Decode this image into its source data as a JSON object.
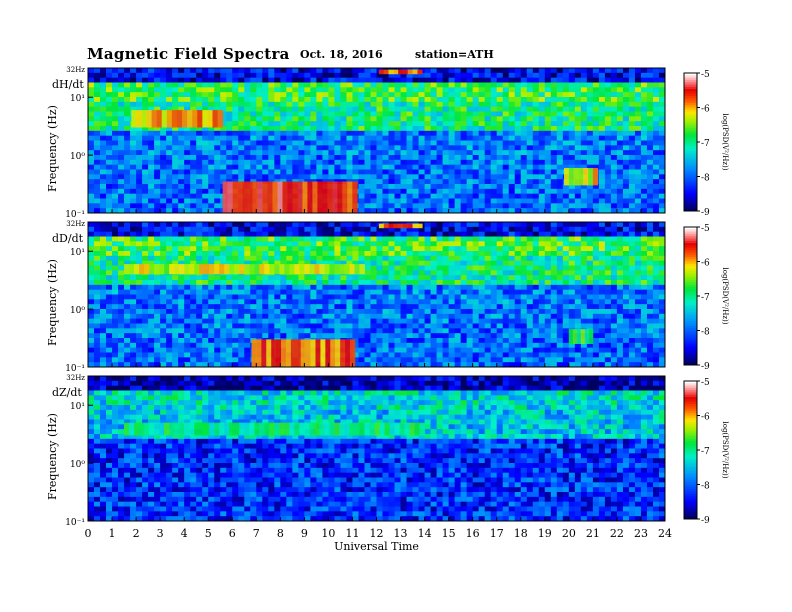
{
  "header": {
    "title": "Magnetic  Field  Spectra",
    "date": "Oct. 18, 2016",
    "station": "station=ATH"
  },
  "chart_data": [
    {
      "type": "heatmap",
      "panel_label": "dH/dt",
      "xlabel": "",
      "ylabel": "Frequency  (Hz)",
      "x_ticks": [
        "0",
        "1",
        "2",
        "3",
        "4",
        "5",
        "6",
        "7",
        "8",
        "9",
        "10",
        "11",
        "12",
        "13",
        "14",
        "15",
        "16",
        "17",
        "18",
        "19",
        "20",
        "21",
        "22",
        "23",
        "24"
      ],
      "xlim": [
        0,
        24
      ],
      "y_scale": "log",
      "ylim": [
        0.1,
        32
      ],
      "y_ticks": [
        "10⁻¹",
        "10⁰",
        "10¹",
        "32Hz"
      ],
      "colorbar": {
        "label": "log(PSD(V²/Hz))",
        "range": [
          -9,
          -5
        ],
        "ticks": [
          "-5",
          "-6",
          "-7",
          "-8",
          "-9"
        ]
      },
      "features": [
        {
          "t_start": 1.8,
          "t_end": 5.6,
          "f_low": 3.0,
          "f_high": 6.0,
          "log_psd": -6.0
        },
        {
          "t_start": 5.6,
          "t_end": 11.2,
          "f_low": 0.1,
          "f_high": 0.35,
          "log_psd": -5.6
        },
        {
          "t_start": 12.1,
          "t_end": 13.9,
          "f_low": 25,
          "f_high": 30,
          "log_psd": -5.8
        },
        {
          "t_start": 19.8,
          "t_end": 21.2,
          "f_low": 0.3,
          "f_high": 0.6,
          "log_psd": -6.2
        }
      ]
    },
    {
      "type": "heatmap",
      "panel_label": "dD/dt",
      "xlabel": "",
      "ylabel": "Frequency  (Hz)",
      "x_ticks": [
        "0",
        "1",
        "2",
        "3",
        "4",
        "5",
        "6",
        "7",
        "8",
        "9",
        "10",
        "11",
        "12",
        "13",
        "14",
        "15",
        "16",
        "17",
        "18",
        "19",
        "20",
        "21",
        "22",
        "23",
        "24"
      ],
      "xlim": [
        0,
        24
      ],
      "y_scale": "log",
      "ylim": [
        0.1,
        32
      ],
      "y_ticks": [
        "10⁻¹",
        "10⁰",
        "10¹",
        "32Hz"
      ],
      "colorbar": {
        "label": "log(PSD(V²/Hz))",
        "range": [
          -9,
          -5
        ],
        "ticks": [
          "-5",
          "-6",
          "-7",
          "-8",
          "-9"
        ]
      },
      "features": [
        {
          "t_start": 1.5,
          "t_end": 11.5,
          "f_low": 4.0,
          "f_high": 6.0,
          "log_psd": -6.3
        },
        {
          "t_start": 6.8,
          "t_end": 11.1,
          "f_low": 0.1,
          "f_high": 0.3,
          "log_psd": -5.8
        },
        {
          "t_start": 12.1,
          "t_end": 13.9,
          "f_low": 25,
          "f_high": 30,
          "log_psd": -5.8
        },
        {
          "t_start": 20.0,
          "t_end": 21.0,
          "f_low": 0.25,
          "f_high": 0.45,
          "log_psd": -6.8
        }
      ]
    },
    {
      "type": "heatmap",
      "panel_label": "dZ/dt",
      "xlabel": "Universal Time",
      "ylabel": "Frequency  (Hz)",
      "x_ticks": [
        "0",
        "1",
        "2",
        "3",
        "4",
        "5",
        "6",
        "7",
        "8",
        "9",
        "10",
        "11",
        "12",
        "13",
        "14",
        "15",
        "16",
        "17",
        "18",
        "19",
        "20",
        "21",
        "22",
        "23",
        "24"
      ],
      "xlim": [
        0,
        24
      ],
      "y_scale": "log",
      "ylim": [
        0.1,
        32
      ],
      "y_ticks": [
        "10⁻¹",
        "10⁰",
        "10¹",
        "32Hz"
      ],
      "colorbar": {
        "label": "log(PSD(V²/Hz))",
        "range": [
          -9,
          -5
        ],
        "ticks": [
          "-5",
          "-6",
          "-7",
          "-8",
          "-9"
        ]
      },
      "features": [
        {
          "t_start": 1.5,
          "t_end": 14.0,
          "f_low": 3.0,
          "f_high": 5.0,
          "log_psd": -7.0
        }
      ]
    }
  ]
}
